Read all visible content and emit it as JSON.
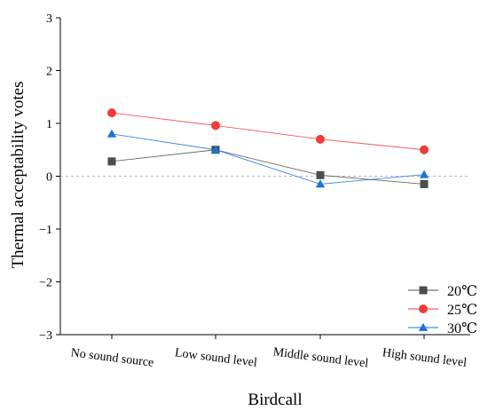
{
  "chart_data": {
    "type": "line",
    "xlabel": "Birdcall",
    "ylabel": "Thermal acceptability votes",
    "categories": [
      "No sound source",
      "Low sound level",
      "Middle sound level",
      "High sound level"
    ],
    "ylim": [
      -3,
      3
    ],
    "yticks": [
      3,
      2,
      1,
      0,
      -1,
      -2,
      -3
    ],
    "ytick_labels": [
      "3",
      "2",
      "1",
      "0",
      "−1",
      "−2",
      "−3"
    ],
    "reference_line": 0,
    "grid": false,
    "legend_position": "bottom-right",
    "series": [
      {
        "name": "20℃",
        "values": [
          0.28,
          0.5,
          0.02,
          -0.15
        ],
        "color": "#4d4d4d",
        "marker": "square"
      },
      {
        "name": "25℃",
        "values": [
          1.2,
          0.96,
          0.7,
          0.5
        ],
        "color": "#f03c3c",
        "marker": "circle"
      },
      {
        "name": "30℃",
        "values": [
          0.8,
          0.5,
          -0.15,
          0.03
        ],
        "color": "#1a73d9",
        "marker": "triangle"
      }
    ]
  }
}
